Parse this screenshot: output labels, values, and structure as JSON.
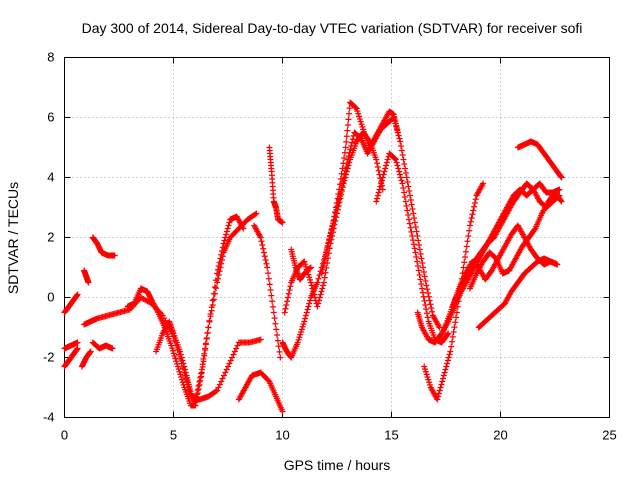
{
  "chart_data": {
    "type": "scatter",
    "title": "Day 300 of 2014, Sidereal Day-to-day VTEC variation (SDTVAR) for receiver sofi",
    "xlabel": "GPS time / hours",
    "ylabel": "SDTVAR / TECUs",
    "xlim": [
      0,
      25
    ],
    "ylim": [
      -4,
      8
    ],
    "xticks": [
      0,
      5,
      10,
      15,
      20,
      25
    ],
    "yticks": [
      -4,
      -2,
      0,
      2,
      4,
      6,
      8
    ],
    "grid": true,
    "marker": "+",
    "color": "#ff0000",
    "series": [
      {
        "x": [
          0.0,
          0.2,
          0.4,
          0.6
        ],
        "y": [
          -0.5,
          -0.3,
          -0.1,
          0.1
        ]
      },
      {
        "x": [
          0.0,
          0.2,
          0.4,
          0.6
        ],
        "y": [
          -2.3,
          -2.1,
          -1.9,
          -1.7
        ]
      },
      {
        "x": [
          0.0,
          0.3,
          0.6
        ],
        "y": [
          -1.7,
          -1.6,
          -1.5
        ]
      },
      {
        "x": [
          0.9,
          1.0,
          1.1
        ],
        "y": [
          0.9,
          0.7,
          0.5
        ]
      },
      {
        "x": [
          0.8,
          1.0,
          1.2
        ],
        "y": [
          -2.3,
          -2.0,
          -1.8
        ]
      },
      {
        "x": [
          1.3,
          1.5,
          1.7,
          2.0,
          2.3
        ],
        "y": [
          2.0,
          1.8,
          1.5,
          1.4,
          1.4
        ]
      },
      {
        "x": [
          1.3,
          1.6,
          1.9,
          2.2
        ],
        "y": [
          -1.5,
          -1.7,
          -1.6,
          -1.7
        ]
      },
      {
        "x": [
          0.9,
          1.2,
          1.5,
          2.0,
          2.5,
          3.0,
          3.5,
          4.0,
          4.5,
          5.0,
          5.5,
          5.8,
          6.2,
          6.6,
          7.0,
          7.5,
          8.0,
          8.5,
          9.0
        ],
        "y": [
          -0.9,
          -0.8,
          -0.7,
          -0.6,
          -0.5,
          -0.4,
          0.0,
          -0.2,
          -0.6,
          -1.3,
          -2.5,
          -3.3,
          -3.4,
          -3.3,
          -3.1,
          -2.3,
          -1.5,
          -1.5,
          -1.4
        ]
      },
      {
        "x": [
          2.9,
          3.2,
          3.5,
          3.8,
          4.0,
          4.3,
          4.6,
          4.9,
          5.2,
          5.5,
          5.8,
          6.0,
          6.3,
          6.6,
          7.0,
          7.3,
          7.6,
          8.0,
          8.4,
          8.8
        ],
        "y": [
          -0.3,
          -0.2,
          0.3,
          0.2,
          -0.1,
          -0.5,
          -1.0,
          -1.6,
          -2.3,
          -3.0,
          -3.6,
          -3.6,
          -2.5,
          -1.0,
          0.5,
          1.5,
          2.0,
          2.3,
          2.6,
          2.8
        ]
      },
      {
        "x": [
          4.2,
          4.5,
          4.8,
          5.0,
          5.3,
          5.6,
          5.8,
          6.0,
          6.3,
          6.6,
          7.0,
          7.3,
          7.6,
          7.9,
          8.2
        ],
        "y": [
          -1.8,
          -1.2,
          -0.8,
          -1.2,
          -1.8,
          -2.6,
          -3.2,
          -3.5,
          -2.4,
          -1.0,
          0.8,
          1.8,
          2.6,
          2.7,
          2.3
        ]
      },
      {
        "x": [
          8.0,
          8.3,
          8.6,
          9.0,
          9.4,
          9.7,
          10.0
        ],
        "y": [
          -3.4,
          -3.0,
          -2.6,
          -2.5,
          -2.8,
          -3.3,
          -3.8
        ]
      },
      {
        "x": [
          8.7,
          9.0,
          9.3,
          9.6,
          9.9
        ],
        "y": [
          2.4,
          2.0,
          1.0,
          -0.5,
          -2.0
        ]
      },
      {
        "x": [
          9.4,
          9.5,
          9.6,
          9.7,
          9.8,
          10.0
        ],
        "y": [
          5.0,
          4.2,
          3.2,
          3.0,
          2.6,
          2.5
        ]
      },
      {
        "x": [
          10.0,
          10.2,
          10.4,
          10.7,
          11.0,
          11.3,
          11.6,
          12.0,
          12.3,
          12.6,
          12.9,
          13.1,
          13.4,
          13.7,
          14.0,
          14.3,
          14.6,
          14.9,
          15.1,
          15.3
        ],
        "y": [
          -1.5,
          -1.8,
          -2.0,
          -1.5,
          -0.8,
          0.0,
          0.5,
          1.5,
          2.4,
          3.6,
          5.0,
          6.5,
          6.3,
          5.6,
          5.0,
          5.4,
          5.8,
          6.2,
          6.1,
          5.5
        ]
      },
      {
        "x": [
          10.1,
          10.4,
          10.7,
          11.0,
          11.3,
          11.6,
          11.9,
          12.2,
          12.5,
          12.8,
          13.1,
          13.4,
          13.7,
          14.0,
          14.3,
          14.6
        ],
        "y": [
          -0.5,
          0.5,
          1.0,
          1.2,
          0.5,
          -0.3,
          0.5,
          1.8,
          2.8,
          3.8,
          4.6,
          5.2,
          5.5,
          5.2,
          4.6,
          3.6
        ]
      },
      {
        "x": [
          10.4,
          10.6,
          10.8,
          11.0,
          11.3
        ],
        "y": [
          1.6,
          1.0,
          0.6,
          0.8,
          1.0
        ]
      },
      {
        "x": [
          11.8,
          12.1,
          12.4,
          12.7,
          13.0,
          13.3,
          13.6,
          13.9,
          14.2,
          14.5,
          14.8,
          15.1,
          15.4,
          15.7,
          16.0,
          16.3,
          16.6,
          16.9,
          17.2
        ],
        "y": [
          0.8,
          1.8,
          2.7,
          3.6,
          4.6,
          5.5,
          5.3,
          4.8,
          5.2,
          5.6,
          5.8,
          6.0,
          5.2,
          4.0,
          2.8,
          1.6,
          0.4,
          -0.6,
          -1.0
        ]
      },
      {
        "x": [
          14.3,
          14.6,
          14.9,
          15.2,
          15.5,
          15.8,
          16.1,
          16.4,
          16.7,
          17.0,
          17.3,
          17.6
        ],
        "y": [
          3.2,
          4.0,
          4.8,
          4.6,
          3.8,
          2.6,
          1.5,
          0.3,
          -0.8,
          -1.4,
          -1.5,
          -1.2
        ]
      },
      {
        "x": [
          16.5,
          16.8,
          17.1,
          17.4,
          17.7,
          18.0,
          18.3,
          18.6,
          18.9,
          19.2
        ],
        "y": [
          -2.3,
          -3.0,
          -3.4,
          -2.6,
          -1.8,
          -0.5,
          1.0,
          2.4,
          3.4,
          3.8
        ]
      },
      {
        "x": [
          16.2,
          16.4,
          16.7,
          17.0,
          17.3,
          17.6,
          17.9,
          18.2,
          18.5,
          18.8,
          19.1,
          19.4,
          19.7,
          20.0,
          20.3,
          20.6,
          20.9,
          21.2,
          21.5,
          21.8,
          22.1,
          22.4,
          22.7
        ],
        "y": [
          -0.5,
          -1.0,
          -1.4,
          -1.5,
          -1.2,
          -0.8,
          -0.3,
          0.2,
          0.6,
          1.0,
          1.4,
          1.8,
          2.2,
          2.6,
          3.0,
          3.4,
          3.6,
          3.4,
          3.6,
          3.8,
          3.5,
          3.5,
          3.6
        ]
      },
      {
        "x": [
          17.3,
          17.6,
          17.9,
          18.2,
          18.5,
          18.8,
          19.1,
          19.4,
          19.7,
          20.0,
          20.3,
          20.6,
          20.9,
          21.2,
          21.5,
          21.8,
          22.1,
          22.4,
          22.7
        ],
        "y": [
          -1.3,
          -0.7,
          -0.1,
          0.4,
          0.8,
          1.2,
          1.5,
          1.8,
          2.0,
          2.4,
          2.8,
          3.2,
          3.5,
          3.8,
          3.6,
          3.2,
          3.0,
          3.2,
          3.4
        ]
      },
      {
        "x": [
          17.8,
          18.1,
          18.4,
          18.7,
          19.0,
          19.3,
          19.6,
          19.9,
          20.2,
          20.5,
          20.8,
          21.1,
          21.4,
          21.7,
          22.0,
          22.3,
          22.6
        ],
        "y": [
          -0.3,
          0.3,
          0.8,
          1.2,
          1.0,
          0.6,
          0.9,
          1.3,
          1.7,
          2.1,
          2.4,
          2.0,
          1.6,
          1.3,
          1.1,
          1.2,
          1.1
        ]
      },
      {
        "x": [
          18.6,
          18.9,
          19.2,
          19.5,
          19.8,
          20.1,
          20.4,
          20.7,
          21.0,
          21.3,
          21.6,
          21.9,
          22.2,
          22.5,
          22.8
        ],
        "y": [
          0.3,
          0.8,
          1.2,
          1.5,
          1.3,
          0.8,
          0.9,
          1.3,
          1.7,
          2.0,
          2.3,
          2.8,
          3.2,
          3.5,
          3.2
        ]
      },
      {
        "x": [
          19.0,
          19.3,
          19.6,
          19.9,
          20.2,
          20.5,
          20.8,
          21.1,
          21.4,
          21.7,
          22.0,
          22.3,
          22.6
        ],
        "y": [
          -1.0,
          -0.8,
          -0.6,
          -0.4,
          -0.2,
          0.2,
          0.5,
          0.8,
          1.0,
          1.2,
          1.3,
          1.2,
          1.1
        ]
      },
      {
        "x": [
          20.8,
          21.1,
          21.4,
          21.7,
          22.0,
          22.3,
          22.6,
          22.8
        ],
        "y": [
          5.0,
          5.1,
          5.2,
          5.1,
          4.8,
          4.5,
          4.2,
          4.0
        ]
      }
    ]
  }
}
